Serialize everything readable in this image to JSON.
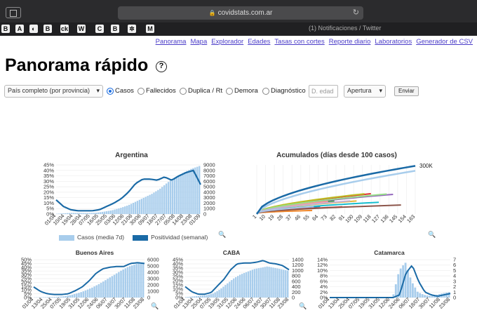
{
  "browser": {
    "url": "covidstats.com.ar",
    "tab_title": "(1) Notificaciones / Twitter",
    "favicons": [
      "B",
      "A",
      "◐",
      "B",
      "ck",
      "W",
      "C",
      "B",
      "✲",
      "M"
    ]
  },
  "nav": {
    "links": [
      "Panorama",
      "Mapa",
      "Explorador",
      "Edades",
      "Tasas con cortes",
      "Reporte diario",
      "Laboratorios",
      "Generador de CSV"
    ]
  },
  "page_title": "Panorama rápido",
  "help_icon": "?",
  "controls": {
    "region_select": "País completo (por provincia)",
    "radios": [
      {
        "label": "Casos",
        "selected": true
      },
      {
        "label": "Fallecidos",
        "selected": false
      },
      {
        "label": "Duplica / Rt",
        "selected": false
      },
      {
        "label": "Demora",
        "selected": false
      },
      {
        "label": "Diagnóstico",
        "selected": false
      }
    ],
    "edad_placeholder": "D. edad",
    "apertura_select": "Apertura",
    "send_label": "Enviar"
  },
  "legend": {
    "casos": "Casos (media 7d)",
    "positividad": "Positividad (semanal)"
  },
  "colors": {
    "bars": "#a8cdec",
    "line": "#1a6aa6"
  },
  "zoom_icon": "🔍",
  "chart_data": [
    {
      "type": "bar+line",
      "title": "Argentina",
      "categories": [
        "01/04",
        "10/04",
        "19/04",
        "28/04",
        "07/05",
        "16/05",
        "25/05",
        "03/06",
        "12/06",
        "21/06",
        "30/06",
        "09/07",
        "18/07",
        "27/07",
        "05/08",
        "14/08",
        "23/08",
        "01/09"
      ],
      "left_ticks": [
        "45%",
        "40%",
        "35%",
        "30%",
        "25%",
        "20%",
        "15%",
        "10%",
        "5%",
        "0%"
      ],
      "right_ticks": [
        "9000",
        "8000",
        "7000",
        "6000",
        "5000",
        "4000",
        "3000",
        "2000",
        "1000",
        "0"
      ],
      "left_max": 45,
      "right_max": 9000,
      "cases": [
        50,
        150,
        220,
        200,
        180,
        250,
        450,
        700,
        1100,
        1600,
        2300,
        3000,
        3700,
        4600,
        5800,
        6800,
        7600,
        8300,
        8800
      ],
      "positivity": [
        13,
        7,
        4,
        3,
        3,
        3,
        4,
        7,
        10,
        14,
        20,
        28,
        32,
        32,
        31,
        34,
        31,
        35,
        38,
        40,
        27
      ]
    },
    {
      "type": "line",
      "title": "Acumulados (días desde 100 casos)",
      "categories": [
        "1",
        "10",
        "19",
        "28",
        "37",
        "46",
        "55",
        "64",
        "73",
        "82",
        "91",
        "100",
        "109",
        "118",
        "127",
        "136",
        "145",
        "154",
        "163"
      ],
      "annotation": "300K",
      "max": 300000
    },
    {
      "type": "bar+line",
      "title": "Buenos Aires",
      "categories": [
        "01/04",
        "13/04",
        "25/04",
        "07/05",
        "19/05",
        "31/05",
        "12/06",
        "24/06",
        "06/07",
        "18/07",
        "30/07",
        "11/08",
        "23/08"
      ],
      "left_ticks": [
        "50%",
        "45%",
        "40%",
        "35%",
        "30%",
        "25%",
        "20%",
        "15%",
        "10%",
        "5%",
        "0%"
      ],
      "right_ticks": [
        "6000",
        "5000",
        "4000",
        "3000",
        "2000",
        "1000",
        "0"
      ],
      "left_max": 50,
      "right_max": 6000,
      "cases": [
        20,
        50,
        80,
        120,
        200,
        400,
        700,
        1100,
        1600,
        2200,
        2900,
        3600,
        4300,
        4900,
        5300,
        5500
      ],
      "positivity": [
        14,
        8,
        5,
        4,
        4,
        5,
        9,
        14,
        22,
        32,
        38,
        40,
        41,
        41,
        45,
        46,
        45
      ]
    },
    {
      "type": "bar+line",
      "title": "CABA",
      "categories": [
        "01/04",
        "13/04",
        "25/04",
        "07/05",
        "19/05",
        "31/05",
        "12/06",
        "24/06",
        "06/07",
        "18/07",
        "30/07",
        "11/08",
        "23/08"
      ],
      "left_ticks": [
        "45%",
        "40%",
        "35%",
        "30%",
        "25%",
        "20%",
        "15%",
        "10%",
        "5%",
        "0%"
      ],
      "right_ticks": [
        "1400",
        "1200",
        "1000",
        "800",
        "600",
        "400",
        "200",
        "0"
      ],
      "left_max": 45,
      "right_max": 1400,
      "cases": [
        20,
        40,
        60,
        90,
        150,
        300,
        500,
        700,
        850,
        950,
        1050,
        1100,
        1150,
        1100,
        1050,
        1000
      ],
      "positivity": [
        13,
        7,
        4,
        4,
        6,
        14,
        22,
        33,
        40,
        41,
        41,
        42,
        44,
        41,
        40,
        38,
        33
      ]
    },
    {
      "type": "bar+line",
      "title": "Catamarca",
      "categories": [
        "01/04",
        "13/04",
        "25/04",
        "07/05",
        "19/05",
        "31/05",
        "12/06",
        "24/06",
        "06/07",
        "18/07",
        "30/07",
        "11/08",
        "23/08"
      ],
      "left_ticks": [
        "14%",
        "12%",
        "10%",
        "8%",
        "6%",
        "4%",
        "2%",
        "0%"
      ],
      "right_ticks": [
        "7",
        "6",
        "5",
        "4",
        "3",
        "2",
        "1",
        "0"
      ],
      "left_max": 14,
      "right_max": 7,
      "cases": [
        0,
        0,
        0,
        0,
        0,
        0,
        0,
        0,
        0,
        0,
        0.2,
        5,
        6.5,
        3,
        1,
        0.5,
        0.3,
        0.5,
        0.8,
        1
      ],
      "positivity": [
        0,
        0,
        0,
        0,
        0,
        0,
        0,
        0,
        0,
        0,
        0,
        1,
        9,
        12,
        6,
        2,
        1,
        0.5,
        1,
        1.5
      ]
    }
  ]
}
